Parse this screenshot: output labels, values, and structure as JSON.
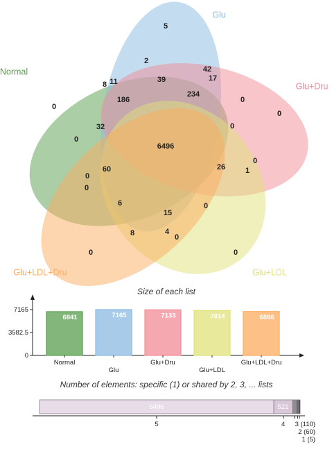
{
  "chart_data": [
    {
      "type": "venn",
      "sets": [
        {
          "name": "Normal",
          "color": "#5a9e4e"
        },
        {
          "name": "Glu",
          "color": "#8ab9e2"
        },
        {
          "name": "Glu+Dru",
          "color": "#f28b95"
        },
        {
          "name": "Glu+LDL",
          "color": "#e0e27a"
        },
        {
          "name": "Glu+LDL+Dru",
          "color": "#fcab5e"
        }
      ],
      "regions": [
        {
          "sets": [
            "Normal",
            "Glu",
            "Glu+Dru",
            "Glu+LDL",
            "Glu+LDL+Dru"
          ],
          "value": 6496
        },
        {
          "sets": [
            "Glu"
          ],
          "value": 5
        },
        {
          "sets": [
            "Glu",
            "Glu+LDL"
          ],
          "value": 2
        },
        {
          "sets": [
            "Glu",
            "Glu+Dru"
          ],
          "value": 42
        },
        {
          "sets": [
            "Glu",
            "Glu+Dru",
            "Glu+LDL"
          ],
          "value": 17
        },
        {
          "sets": [
            "Glu",
            "Glu+Dru",
            "Glu+LDL",
            "Glu+LDL+Dru"
          ],
          "value": 39
        },
        {
          "sets": [
            "Glu",
            "Glu+Dru",
            "Glu+LDL"
          ],
          "value": 234
        },
        {
          "sets": [
            "Normal",
            "Glu"
          ],
          "value": 8
        },
        {
          "sets": [
            "Normal",
            "Glu",
            "Glu+LDL"
          ],
          "value": 11
        },
        {
          "sets": [
            "Normal",
            "Glu",
            "Glu+LDL",
            "Glu+Dru"
          ],
          "value": 186
        },
        {
          "sets": [
            "Normal"
          ],
          "value": 0
        },
        {
          "sets": [
            "Glu+Dru"
          ],
          "value": 0
        },
        {
          "sets": [
            "Glu+Dru",
            "Glu+LDL"
          ],
          "value": 0
        },
        {
          "sets": [
            "Normal",
            "Glu+Dru",
            "Glu+LDL+Dru"
          ],
          "value": 32
        },
        {
          "sets": [
            "Normal",
            "Glu+Dru"
          ],
          "value": 0
        },
        {
          "sets": [
            "Glu+Dru",
            "Glu+LDL"
          ],
          "value": 0
        },
        {
          "sets": [
            "Glu",
            "Glu+Dru",
            "Glu+LDL",
            "Glu+LDL+Dru"
          ],
          "value": 26
        },
        {
          "sets": [
            "Glu+Dru",
            "Glu+LDL",
            "Glu+LDL+Dru"
          ],
          "value": 1
        },
        {
          "sets": [
            "Normal",
            "Glu+Dru",
            "Glu+LDL+Dru"
          ],
          "value": 0
        },
        {
          "sets": [
            "Normal",
            "Glu+Dru",
            "Glu+LDL",
            "Glu+LDL+Dru"
          ],
          "value": 60
        },
        {
          "sets": [
            "Normal",
            "Glu+LDL+Dru"
          ],
          "value": 0
        },
        {
          "sets": [
            "Glu+Dru",
            "Glu+LDL"
          ],
          "value": 0
        },
        {
          "sets": [
            "Normal",
            "Glu+LDL+Dru"
          ],
          "value": 6
        },
        {
          "sets": [
            "Normal",
            "Glu",
            "Glu+LDL",
            "Glu+LDL+Dru"
          ],
          "value": 15
        },
        {
          "sets": [
            "Glu+LDL",
            "Glu+LDL+Dru"
          ],
          "value": 0
        },
        {
          "sets": [
            "Normal",
            "Glu+LDL+Dru",
            "Glu"
          ],
          "value": 8
        },
        {
          "sets": [
            "Glu",
            "Glu+LDL+Dru"
          ],
          "value": 4
        },
        {
          "sets": [
            "Glu+LDL",
            "Glu+LDL+Dru"
          ],
          "value": 0
        },
        {
          "sets": [
            "Glu+LDL+Dru"
          ],
          "value": 0
        },
        {
          "sets": [
            "Glu+LDL"
          ],
          "value": 0
        }
      ]
    },
    {
      "type": "bar",
      "title": "Size of each list",
      "categories": [
        "Normal",
        "Glu",
        "Glu+Dru",
        "Glu+LDL",
        "Glu+LDL+Dru"
      ],
      "values": [
        6841,
        7165,
        7133,
        7014,
        6866
      ],
      "colors": [
        "#5a9e4e",
        "#8ab9e2",
        "#f28b95",
        "#e0e27a",
        "#fcab5e"
      ],
      "yticks": [
        "7165",
        "3582.5",
        "0"
      ],
      "ylim": [
        0,
        7165
      ]
    },
    {
      "type": "stacked-bar",
      "title": "Number of elements: specific (1) or shared by 2, 3, ... lists",
      "segments": [
        {
          "label": "5",
          "value": 6496,
          "shown": "6496"
        },
        {
          "label": "4",
          "value": 521,
          "shown": "521"
        },
        {
          "label": "3",
          "value": 110,
          "shown": "3 (110)"
        },
        {
          "label": "2",
          "value": 60,
          "shown": "2 (60)"
        },
        {
          "label": "1",
          "value": 5,
          "shown": "1 (5)"
        }
      ]
    }
  ]
}
